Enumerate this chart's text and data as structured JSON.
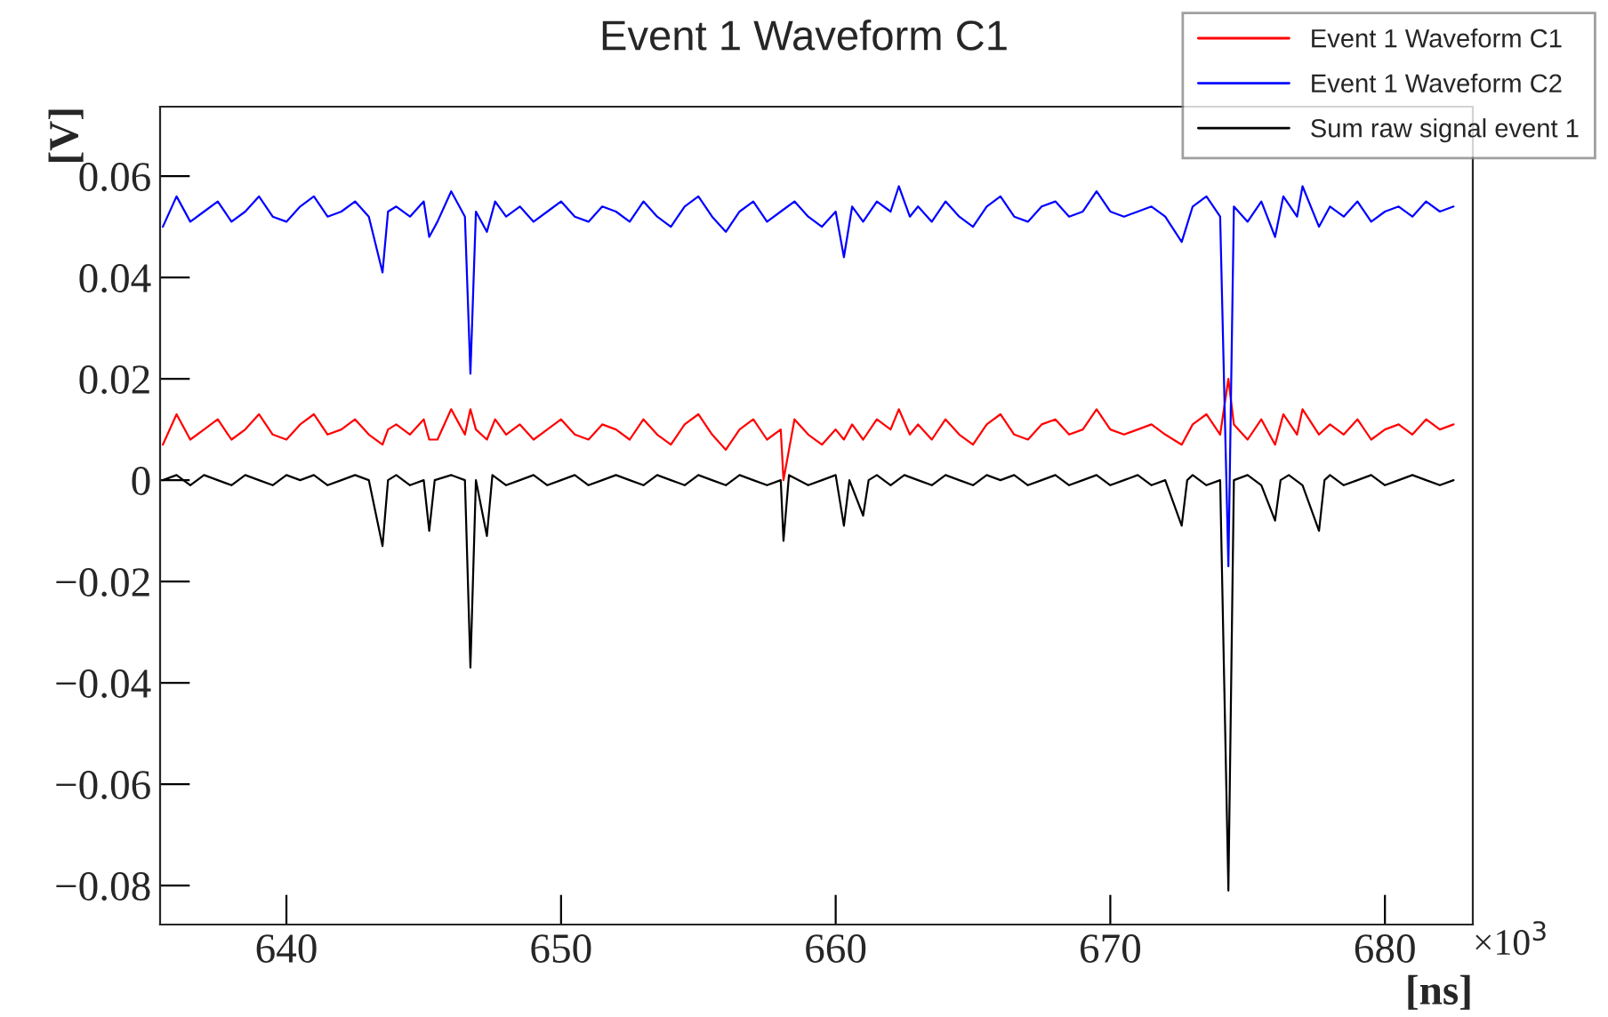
{
  "chart_data": {
    "type": "line",
    "title": "Event 1 Waveform C1",
    "xlabel": "[ns]",
    "ylabel": "[V]",
    "annotations": [
      "×10$^{3}$"
    ],
    "xlim": [
      635.4,
      683.2
    ],
    "xticks": [
      640,
      650,
      660,
      670,
      680
    ],
    "ylim": [
      -0.0877,
      0.0737
    ],
    "yticks": [
      {
        "value": -0.08,
        "label": "−0.08"
      },
      {
        "value": -0.06,
        "label": "−0.06"
      },
      {
        "value": -0.04,
        "label": "−0.04"
      },
      {
        "value": -0.02,
        "label": "−0.02"
      },
      0,
      0.02,
      0.04,
      0.06
    ],
    "grid": false,
    "legend": "top right",
    "marker": "none",
    "line_style": "solid",
    "series": [
      {
        "name": "Event 1 Waveform C1",
        "color": "#ff0000",
        "x": [
          635.5,
          636,
          636.5,
          637,
          637.5,
          638,
          638.5,
          639,
          639.5,
          640,
          640.5,
          641,
          641.5,
          642,
          642.5,
          643,
          643.5,
          643.7,
          644,
          644.5,
          645,
          645.2,
          645.5,
          646,
          646.5,
          646.7,
          646.9,
          647.3,
          647.6,
          648,
          648.5,
          649,
          649.5,
          650,
          650.5,
          651,
          651.5,
          652,
          652.5,
          653,
          653.5,
          654,
          654.5,
          655,
          655.5,
          656,
          656.5,
          657,
          657.5,
          658,
          658.1,
          658.5,
          659,
          659.5,
          660,
          660.3,
          660.6,
          661,
          661.5,
          662,
          662.3,
          662.7,
          663,
          663.5,
          664,
          664.5,
          665,
          665.5,
          666,
          666.5,
          667,
          667.5,
          668,
          668.5,
          669,
          669.5,
          670,
          670.5,
          671,
          671.5,
          672,
          672.6,
          673,
          673.5,
          674,
          674.3,
          674.5,
          675,
          675.5,
          676,
          676.3,
          676.8,
          677,
          677.6,
          678,
          678.5,
          679,
          679.5,
          680,
          680.5,
          681,
          681.5,
          682,
          682.5
        ],
        "values": [
          0.007,
          0.013,
          0.008,
          0.01,
          0.012,
          0.008,
          0.01,
          0.013,
          0.009,
          0.008,
          0.011,
          0.013,
          0.009,
          0.01,
          0.012,
          0.009,
          0.007,
          0.01,
          0.011,
          0.009,
          0.012,
          0.008,
          0.008,
          0.014,
          0.009,
          0.014,
          0.01,
          0.008,
          0.012,
          0.009,
          0.011,
          0.008,
          0.01,
          0.012,
          0.009,
          0.008,
          0.011,
          0.01,
          0.008,
          0.012,
          0.009,
          0.007,
          0.011,
          0.013,
          0.009,
          0.006,
          0.01,
          0.012,
          0.008,
          0.01,
          0.0,
          0.012,
          0.009,
          0.007,
          0.01,
          0.008,
          0.011,
          0.008,
          0.012,
          0.01,
          0.014,
          0.009,
          0.011,
          0.008,
          0.012,
          0.009,
          0.007,
          0.011,
          0.013,
          0.009,
          0.008,
          0.011,
          0.012,
          0.009,
          0.01,
          0.014,
          0.01,
          0.009,
          0.01,
          0.011,
          0.009,
          0.007,
          0.011,
          0.013,
          0.009,
          0.02,
          0.011,
          0.008,
          0.012,
          0.007,
          0.013,
          0.009,
          0.014,
          0.009,
          0.011,
          0.009,
          0.012,
          0.008,
          0.01,
          0.011,
          0.009,
          0.012,
          0.01,
          0.011
        ]
      },
      {
        "name": "Event 1 Waveform C2",
        "color": "#0000ff",
        "x": [
          635.5,
          636,
          636.5,
          637,
          637.5,
          638,
          638.5,
          639,
          639.5,
          640,
          640.5,
          641,
          641.5,
          642,
          642.5,
          643,
          643.5,
          643.7,
          644,
          644.5,
          645,
          645.2,
          645.5,
          646,
          646.5,
          646.7,
          646.9,
          647.3,
          647.6,
          648,
          648.5,
          649,
          649.5,
          650,
          650.5,
          651,
          651.5,
          652,
          652.5,
          653,
          653.5,
          654,
          654.5,
          655,
          655.5,
          656,
          656.5,
          657,
          657.5,
          658,
          658.5,
          659,
          659.5,
          660,
          660.3,
          660.6,
          661,
          661.5,
          662,
          662.3,
          662.7,
          663,
          663.5,
          664,
          664.5,
          665,
          665.5,
          666,
          666.5,
          667,
          667.5,
          668,
          668.5,
          669,
          669.5,
          670,
          670.5,
          671,
          671.5,
          672,
          672.6,
          673,
          673.5,
          674,
          674.3,
          674.5,
          675,
          675.5,
          676,
          676.3,
          676.8,
          677,
          677.6,
          678,
          678.5,
          679,
          679.5,
          680,
          680.5,
          681,
          681.5,
          682,
          682.5
        ],
        "values": [
          0.05,
          0.056,
          0.051,
          0.053,
          0.055,
          0.051,
          0.053,
          0.056,
          0.052,
          0.051,
          0.054,
          0.056,
          0.052,
          0.053,
          0.055,
          0.052,
          0.041,
          0.053,
          0.054,
          0.052,
          0.055,
          0.048,
          0.051,
          0.057,
          0.052,
          0.021,
          0.053,
          0.049,
          0.055,
          0.052,
          0.054,
          0.051,
          0.053,
          0.055,
          0.052,
          0.051,
          0.054,
          0.053,
          0.051,
          0.055,
          0.052,
          0.05,
          0.054,
          0.056,
          0.052,
          0.049,
          0.053,
          0.055,
          0.051,
          0.053,
          0.055,
          0.052,
          0.05,
          0.053,
          0.044,
          0.054,
          0.051,
          0.055,
          0.053,
          0.058,
          0.052,
          0.054,
          0.051,
          0.055,
          0.052,
          0.05,
          0.054,
          0.056,
          0.052,
          0.051,
          0.054,
          0.055,
          0.052,
          0.053,
          0.057,
          0.053,
          0.052,
          0.053,
          0.054,
          0.052,
          0.047,
          0.054,
          0.056,
          0.052,
          -0.017,
          0.054,
          0.051,
          0.055,
          0.048,
          0.056,
          0.052,
          0.058,
          0.05,
          0.054,
          0.052,
          0.055,
          0.051,
          0.053,
          0.054,
          0.052,
          0.055,
          0.053,
          0.054
        ]
      },
      {
        "name": "Sum raw signal event 1",
        "color": "#000000",
        "x": [
          635.5,
          636,
          636.5,
          637,
          637.5,
          638,
          638.5,
          639,
          639.5,
          640,
          640.5,
          641,
          641.5,
          642,
          642.5,
          643,
          643.5,
          643.7,
          644,
          644.5,
          645,
          645.2,
          645.4,
          646,
          646.5,
          646.7,
          646.9,
          647.3,
          647.5,
          648,
          648.5,
          649,
          649.5,
          650,
          650.5,
          651,
          651.5,
          652,
          652.5,
          653,
          653.5,
          654,
          654.5,
          655,
          655.5,
          656,
          656.5,
          657,
          657.5,
          658,
          658.1,
          658.3,
          659,
          659.5,
          660,
          660.3,
          660.5,
          661,
          661.2,
          661.5,
          662,
          662.5,
          663,
          663.5,
          664,
          664.5,
          665,
          665.5,
          666,
          666.5,
          667,
          667.5,
          668,
          668.5,
          669,
          669.5,
          670,
          670.5,
          671,
          671.5,
          672,
          672.6,
          672.8,
          673,
          673.5,
          674,
          674.3,
          674.5,
          675,
          675.5,
          676,
          676.2,
          676.5,
          677,
          677.6,
          677.8,
          678,
          678.5,
          679,
          679.5,
          680,
          680.5,
          681,
          681.5,
          682,
          682.5
        ],
        "values": [
          0.0,
          0.001,
          -0.001,
          0.001,
          0.0,
          -0.001,
          0.001,
          0.0,
          -0.001,
          0.001,
          0.0,
          0.001,
          -0.001,
          0.0,
          0.001,
          0.0,
          -0.013,
          0.0,
          0.001,
          -0.001,
          0.0,
          -0.01,
          0.0,
          0.001,
          0.0,
          -0.037,
          0.0,
          -0.011,
          0.001,
          -0.001,
          0.0,
          0.001,
          -0.001,
          0.0,
          0.001,
          -0.001,
          0.0,
          0.001,
          0.0,
          -0.001,
          0.001,
          0.0,
          -0.001,
          0.001,
          0.0,
          -0.001,
          0.001,
          0.0,
          -0.001,
          0.0,
          -0.012,
          0.001,
          -0.001,
          0.0,
          0.001,
          -0.009,
          0.0,
          -0.007,
          0.0,
          0.001,
          -0.001,
          0.001,
          0.0,
          -0.001,
          0.001,
          0.0,
          -0.001,
          0.001,
          0.0,
          0.001,
          -0.001,
          0.0,
          0.001,
          -0.001,
          0.0,
          0.001,
          -0.001,
          0.0,
          0.001,
          -0.001,
          0.0,
          -0.009,
          0.0,
          0.001,
          -0.001,
          0.0,
          -0.081,
          0.0,
          0.001,
          -0.001,
          -0.008,
          0.0,
          0.001,
          -0.001,
          -0.01,
          0.0,
          0.001,
          -0.001,
          0.0,
          0.001,
          -0.001,
          0.0,
          0.001,
          0.0,
          -0.001,
          0.0
        ]
      }
    ]
  }
}
